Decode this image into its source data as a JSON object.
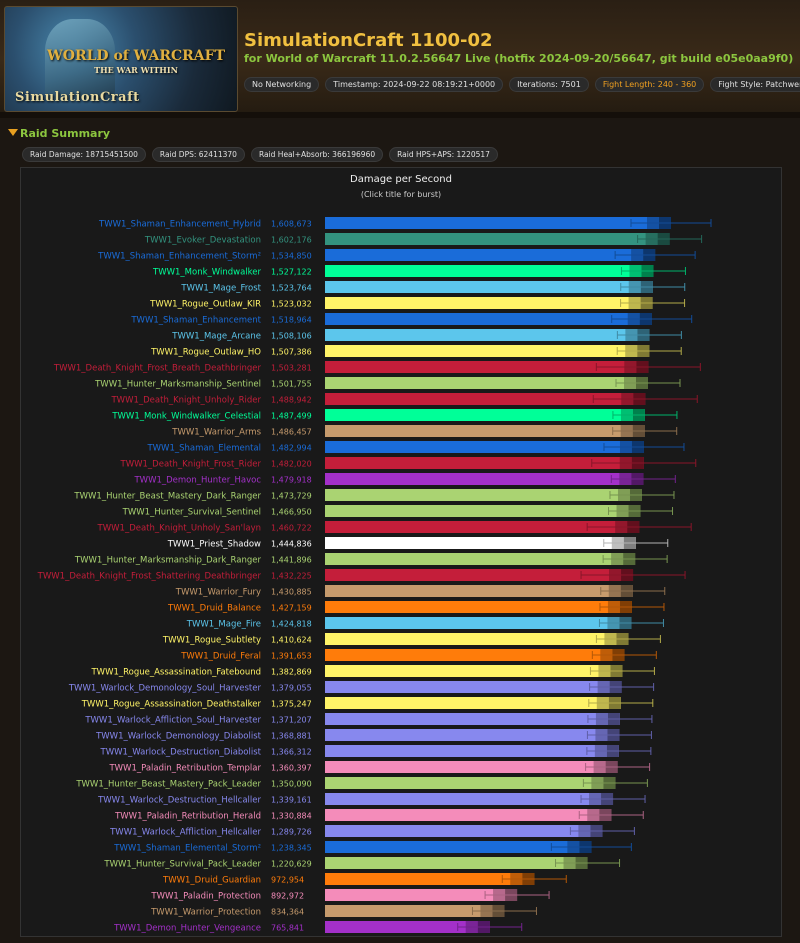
{
  "header": {
    "banner_text": "SimulationCraft",
    "wow_logo": "WORLD of WARCRAFT",
    "wow_sub": "THE WAR WITHIN",
    "title": "SimulationCraft 1100-02",
    "subtitle": "for World of Warcraft 11.0.2.56647 Live (hotfix 2024-09-20/56647, git build e05e0aa9f0)",
    "tags": [
      "No Networking",
      "Timestamp: 2024-09-22 08:19:21+0000",
      "Iterations: 7501",
      "Fight Length: 240 - 360",
      "Fight Style: Patchwerk"
    ]
  },
  "raid_summary": {
    "heading": "Raid Summary",
    "stats": [
      "Raid Damage: 18715451500",
      "Raid DPS: 62411370",
      "Raid Heal+Absorb: 366196960",
      "Raid HPS+APS: 1220517"
    ]
  },
  "colors": {
    "shaman": "#1a6cd9",
    "evoker": "#33937f",
    "monk": "#00ff98",
    "mage": "#5cc6ec",
    "rogue": "#fff468",
    "death_knight": "#c41e3a",
    "hunter": "#aad372",
    "warrior": "#c69b6d",
    "demon_hunter": "#a330c9",
    "priest": "#ffffff",
    "druid": "#ff7c0a",
    "warlock": "#8788ee",
    "paladin": "#f48cba"
  },
  "chart_data": {
    "type": "bar",
    "orientation": "horizontal",
    "title": "Damage per Second",
    "subtitle": "(Click title for burst)",
    "xlim": [
      0,
      1700000
    ],
    "grid": false,
    "bars": [
      {
        "label": "TWW1_Shaman_Enhancement_Hybrid",
        "value": 1608673,
        "display": "1,608,673",
        "cls": "shaman"
      },
      {
        "label": "TWW1_Evoker_Devastation",
        "value": 1602176,
        "display": "1,602,176",
        "cls": "evoker"
      },
      {
        "label": "TWW1_Shaman_Enhancement_Storm²",
        "value": 1534850,
        "display": "1,534,850",
        "cls": "shaman"
      },
      {
        "label": "TWW1_Monk_Windwalker",
        "value": 1527122,
        "display": "1,527,122",
        "cls": "monk"
      },
      {
        "label": "TWW1_Mage_Frost",
        "value": 1523764,
        "display": "1,523,764",
        "cls": "mage"
      },
      {
        "label": "TWW1_Rogue_Outlaw_KIR",
        "value": 1523032,
        "display": "1,523,032",
        "cls": "rogue"
      },
      {
        "label": "TWW1_Shaman_Enhancement",
        "value": 1518964,
        "display": "1,518,964",
        "cls": "shaman"
      },
      {
        "label": "TWW1_Mage_Arcane",
        "value": 1508106,
        "display": "1,508,106",
        "cls": "mage"
      },
      {
        "label": "TWW1_Rogue_Outlaw_HO",
        "value": 1507386,
        "display": "1,507,386",
        "cls": "rogue"
      },
      {
        "label": "TWW1_Death_Knight_Frost_Breath_Deathbringer",
        "value": 1503281,
        "display": "1,503,281",
        "cls": "death_knight"
      },
      {
        "label": "TWW1_Hunter_Marksmanship_Sentinel",
        "value": 1501755,
        "display": "1,501,755",
        "cls": "hunter"
      },
      {
        "label": "TWW1_Death_Knight_Unholy_Rider",
        "value": 1488942,
        "display": "1,488,942",
        "cls": "death_knight"
      },
      {
        "label": "TWW1_Monk_Windwalker_Celestial",
        "value": 1487499,
        "display": "1,487,499",
        "cls": "monk"
      },
      {
        "label": "TWW1_Warrior_Arms",
        "value": 1486457,
        "display": "1,486,457",
        "cls": "warrior"
      },
      {
        "label": "TWW1_Shaman_Elemental",
        "value": 1482994,
        "display": "1,482,994",
        "cls": "shaman"
      },
      {
        "label": "TWW1_Death_Knight_Frost_Rider",
        "value": 1482020,
        "display": "1,482,020",
        "cls": "death_knight"
      },
      {
        "label": "TWW1_Demon_Hunter_Havoc",
        "value": 1479918,
        "display": "1,479,918",
        "cls": "demon_hunter"
      },
      {
        "label": "TWW1_Hunter_Beast_Mastery_Dark_Ranger",
        "value": 1473729,
        "display": "1,473,729",
        "cls": "hunter"
      },
      {
        "label": "TWW1_Hunter_Survival_Sentinel",
        "value": 1466950,
        "display": "1,466,950",
        "cls": "hunter"
      },
      {
        "label": "TWW1_Death_Knight_Unholy_San'layn",
        "value": 1460722,
        "display": "1,460,722",
        "cls": "death_knight"
      },
      {
        "label": "TWW1_Priest_Shadow",
        "value": 1444836,
        "display": "1,444,836",
        "cls": "priest"
      },
      {
        "label": "TWW1_Hunter_Marksmanship_Dark_Ranger",
        "value": 1441896,
        "display": "1,441,896",
        "cls": "hunter"
      },
      {
        "label": "TWW1_Death_Knight_Frost_Shattering_Deathbringer",
        "value": 1432225,
        "display": "1,432,225",
        "cls": "death_knight"
      },
      {
        "label": "TWW1_Warrior_Fury",
        "value": 1430885,
        "display": "1,430,885",
        "cls": "warrior"
      },
      {
        "label": "TWW1_Druid_Balance",
        "value": 1427159,
        "display": "1,427,159",
        "cls": "druid"
      },
      {
        "label": "TWW1_Mage_Fire",
        "value": 1424818,
        "display": "1,424,818",
        "cls": "mage"
      },
      {
        "label": "TWW1_Rogue_Subtlety",
        "value": 1410624,
        "display": "1,410,624",
        "cls": "rogue"
      },
      {
        "label": "TWW1_Druid_Feral",
        "value": 1391653,
        "display": "1,391,653",
        "cls": "druid"
      },
      {
        "label": "TWW1_Rogue_Assassination_Fatebound",
        "value": 1382869,
        "display": "1,382,869",
        "cls": "rogue"
      },
      {
        "label": "TWW1_Warlock_Demonology_Soul_Harvester",
        "value": 1379055,
        "display": "1,379,055",
        "cls": "warlock"
      },
      {
        "label": "TWW1_Rogue_Assassination_Deathstalker",
        "value": 1375247,
        "display": "1,375,247",
        "cls": "rogue"
      },
      {
        "label": "TWW1_Warlock_Affliction_Soul_Harvester",
        "value": 1371207,
        "display": "1,371,207",
        "cls": "warlock"
      },
      {
        "label": "TWW1_Warlock_Demonology_Diabolist",
        "value": 1368881,
        "display": "1,368,881",
        "cls": "warlock"
      },
      {
        "label": "TWW1_Warlock_Destruction_Diabolist",
        "value": 1366312,
        "display": "1,366,312",
        "cls": "warlock"
      },
      {
        "label": "TWW1_Paladin_Retribution_Templar",
        "value": 1360397,
        "display": "1,360,397",
        "cls": "paladin"
      },
      {
        "label": "TWW1_Hunter_Beast_Mastery_Pack_Leader",
        "value": 1350090,
        "display": "1,350,090",
        "cls": "hunter"
      },
      {
        "label": "TWW1_Warlock_Destruction_Hellcaller",
        "value": 1339161,
        "display": "1,339,161",
        "cls": "warlock"
      },
      {
        "label": "TWW1_Paladin_Retribution_Herald",
        "value": 1330884,
        "display": "1,330,884",
        "cls": "paladin"
      },
      {
        "label": "TWW1_Warlock_Affliction_Hellcaller",
        "value": 1289726,
        "display": "1,289,726",
        "cls": "warlock"
      },
      {
        "label": "TWW1_Shaman_Elemental_Storm²",
        "value": 1238345,
        "display": "1,238,345",
        "cls": "shaman"
      },
      {
        "label": "TWW1_Hunter_Survival_Pack_Leader",
        "value": 1220629,
        "display": "1,220,629",
        "cls": "hunter"
      },
      {
        "label": "TWW1_Druid_Guardian",
        "value": 972954,
        "display": "972,954",
        "cls": "druid"
      },
      {
        "label": "TWW1_Paladin_Protection",
        "value": 892972,
        "display": "892,972",
        "cls": "paladin"
      },
      {
        "label": "TWW1_Warrior_Protection",
        "value": 834364,
        "display": "834,364",
        "cls": "warrior"
      },
      {
        "label": "TWW1_Demon_Hunter_Vengeance",
        "value": 765841,
        "display": "765,841",
        "cls": "demon_hunter"
      }
    ]
  }
}
